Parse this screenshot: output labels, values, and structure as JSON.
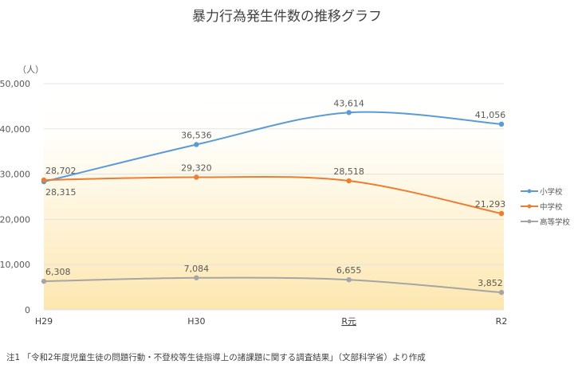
{
  "chart_data": {
    "type": "line",
    "title": "暴力行為発生件数の推移グラフ",
    "ylabel": "（人）",
    "categories": [
      "H29",
      "H30",
      "R元",
      "R2"
    ],
    "ylim": [
      0,
      50000
    ],
    "yticks": [
      0,
      10000,
      20000,
      30000,
      40000,
      50000
    ],
    "ytick_labels": [
      "0",
      "10,000",
      "20,000",
      "30,000",
      "40,000",
      "50,000"
    ],
    "grid": true,
    "smooth": true,
    "legend_position": "right",
    "series": [
      {
        "name": "小学校",
        "color": "#5b9bd5",
        "values": [
          28315,
          36536,
          43614,
          41056
        ],
        "labels": [
          "28,315",
          "36,536",
          "43,614",
          "41,056"
        ]
      },
      {
        "name": "中学校",
        "color": "#ed7d31",
        "values": [
          28702,
          29320,
          28518,
          21293
        ],
        "labels": [
          "28,702",
          "29,320",
          "28,518",
          "21,293"
        ]
      },
      {
        "name": "高等学校",
        "color": "#a5a5a5",
        "values": [
          6308,
          7084,
          6655,
          3852
        ],
        "labels": [
          "6,308",
          "7,084",
          "6,655",
          "3,852"
        ]
      }
    ]
  },
  "note": "注1 「令和2年度児童生徒の問題行動・不登校等生徒指導上の諸課題に関する調査結果」（文部科学省）より作成"
}
